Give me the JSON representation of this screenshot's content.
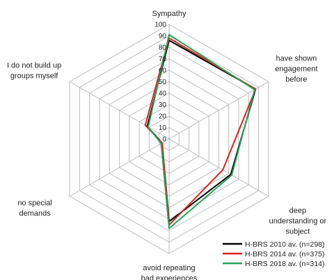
{
  "chart_data": {
    "type": "radar",
    "axes": [
      {
        "lines": [
          "Sympathy"
        ]
      },
      {
        "lines": [
          "have shown",
          "engagement",
          "before"
        ]
      },
      {
        "lines": [
          "deep",
          "understanding or",
          "subject"
        ]
      },
      {
        "lines": [
          "avoid repeating",
          "bad experiences"
        ]
      },
      {
        "lines": [
          "no special",
          "demands"
        ]
      },
      {
        "lines": [
          "I do not build up",
          "groups myself"
        ]
      }
    ],
    "ticks": [
      "0",
      "10",
      "20",
      "30",
      "40",
      "50",
      "60",
      "70",
      "80",
      "90",
      "100"
    ],
    "r_range": [
      0,
      100
    ],
    "grid": true,
    "legend_position": "bottom-right",
    "series": [
      {
        "name": "H-BRS 2010 av. (n=298)",
        "color": "#000000",
        "values": [
          86,
          87,
          62,
          72,
          7,
          22
        ]
      },
      {
        "name": "H-BRS 2014 av. (n=375)",
        "color": "#e0201b",
        "values": [
          88,
          87,
          54,
          75,
          7,
          24
        ]
      },
      {
        "name": "H-BRS 2018 av. (n=314)",
        "color": "#22a65a",
        "values": [
          91,
          86,
          63,
          78,
          8,
          21
        ]
      }
    ]
  }
}
